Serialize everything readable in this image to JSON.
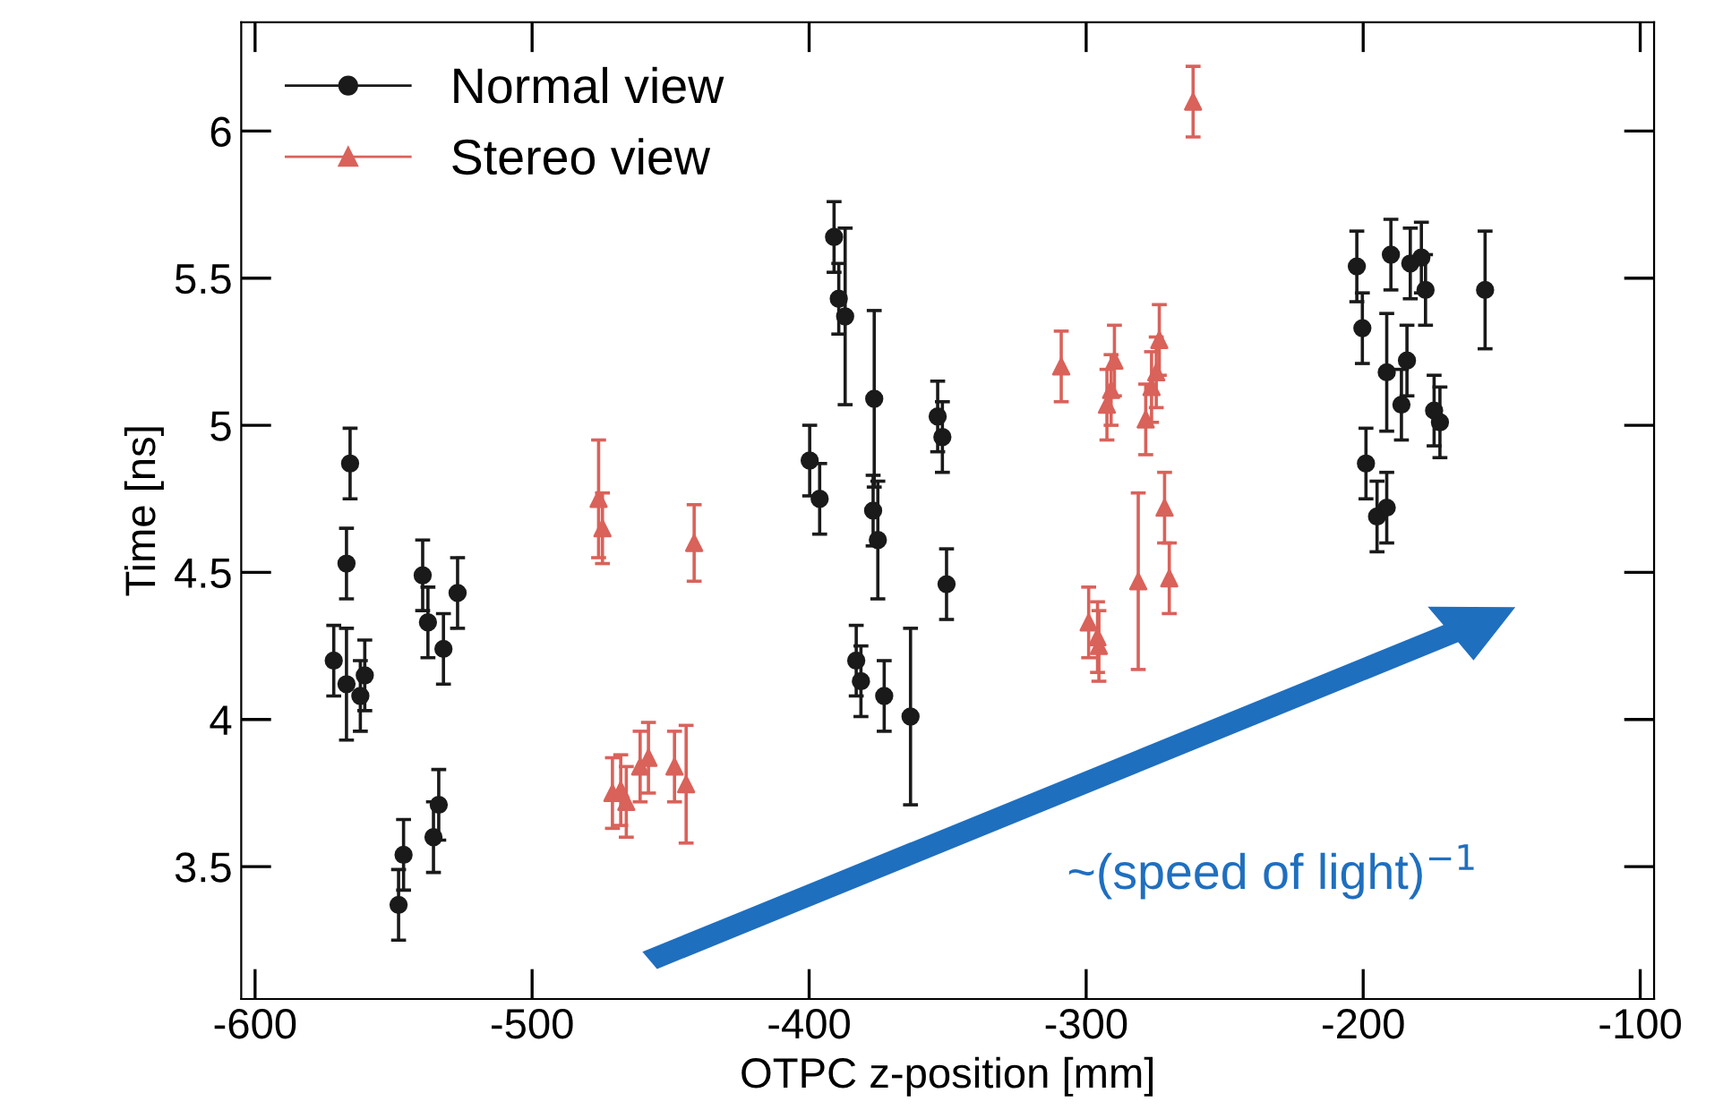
{
  "chart_data": {
    "type": "scatter",
    "xlabel": "OTPC z-position [mm]",
    "ylabel": "Time [ns]",
    "xlim": [
      -605,
      -95
    ],
    "ylim": [
      3.05,
      6.37
    ],
    "xticks": [
      -600,
      -500,
      -400,
      -300,
      -200,
      -100
    ],
    "yticks": [
      3.5,
      4,
      4.5,
      5,
      5.5,
      6
    ],
    "legend": "top left",
    "grid": false,
    "annotations": [
      "~(speed of light)$^{−1}$"
    ],
    "series": [
      {
        "name": "Normal view",
        "color": "#1a1a1a",
        "marker": "circle",
        "x": [
          -571.6,
          -567,
          -567,
          -565.7,
          -562,
          -560.4,
          -548.2,
          -546.4,
          -539.5,
          -537.6,
          -535.6,
          -533.7,
          -532,
          -526.9,
          -391,
          -389.3,
          -387,
          -376.5,
          -353.6,
          -351.9,
          -399.8,
          -396.2,
          -376.9,
          -375.2,
          -350.4,
          -383,
          -381.3,
          -372.9,
          -363.4,
          -202.3,
          -190,
          -183,
          -179,
          -177.5,
          -156,
          -200.3,
          -184.2,
          -191.5,
          -186.2,
          -174.4,
          -172.3,
          -199,
          -195,
          -191.5
        ],
        "values": [
          4.2,
          4.12,
          4.53,
          4.87,
          4.08,
          4.15,
          3.37,
          3.54,
          4.49,
          4.33,
          3.6,
          3.71,
          4.24,
          4.43,
          5.64,
          5.43,
          5.37,
          5.09,
          5.03,
          4.96,
          4.88,
          4.75,
          4.71,
          4.61,
          4.46,
          4.2,
          4.13,
          4.08,
          4.01,
          5.54,
          5.58,
          5.55,
          5.57,
          5.46,
          5.46,
          5.33,
          5.22,
          5.18,
          5.07,
          5.05,
          5.01,
          4.87,
          4.69,
          4.72
        ],
        "errors": [
          0.12,
          0.19,
          0.12,
          0.12,
          0.12,
          0.12,
          0.12,
          0.12,
          0.12,
          0.12,
          0.12,
          0.12,
          0.12,
          0.12,
          0.12,
          0.12,
          0.3,
          0.3,
          0.12,
          0.12,
          0.12,
          0.12,
          0.12,
          0.2,
          0.12,
          0.12,
          0.12,
          0.12,
          0.3,
          0.12,
          0.12,
          0.12,
          0.12,
          0.12,
          0.2,
          0.12,
          0.12,
          0.2,
          0.12,
          0.12,
          0.12,
          0.12,
          0.12,
          0.12
        ]
      },
      {
        "name": "Stereo view",
        "color": "#d9625a",
        "marker": "triangle",
        "x": [
          -476,
          -474.6,
          -441.5,
          -471,
          -468,
          -466,
          -461,
          -458,
          -448.6,
          -444.4,
          -261.4,
          -309,
          -289.8,
          -291,
          -292.5,
          -273.6,
          -274.7,
          -276.4,
          -278.5,
          -271.7,
          -270,
          -281.2,
          -299.1,
          -295.9,
          -295.4
        ],
        "values": [
          4.75,
          4.65,
          4.6,
          3.75,
          3.76,
          3.72,
          3.84,
          3.87,
          3.84,
          3.78,
          6.1,
          5.2,
          5.22,
          5.12,
          5.07,
          5.29,
          5.18,
          5.13,
          5.02,
          4.72,
          4.48,
          4.47,
          4.33,
          4.28,
          4.25
        ],
        "errors": [
          0.2,
          0.12,
          0.13,
          0.12,
          0.12,
          0.12,
          0.12,
          0.12,
          0.12,
          0.2,
          0.12,
          0.12,
          0.12,
          0.12,
          0.12,
          0.12,
          0.12,
          0.12,
          0.12,
          0.12,
          0.12,
          0.3,
          0.12,
          0.12,
          0.12
        ]
      }
    ]
  }
}
